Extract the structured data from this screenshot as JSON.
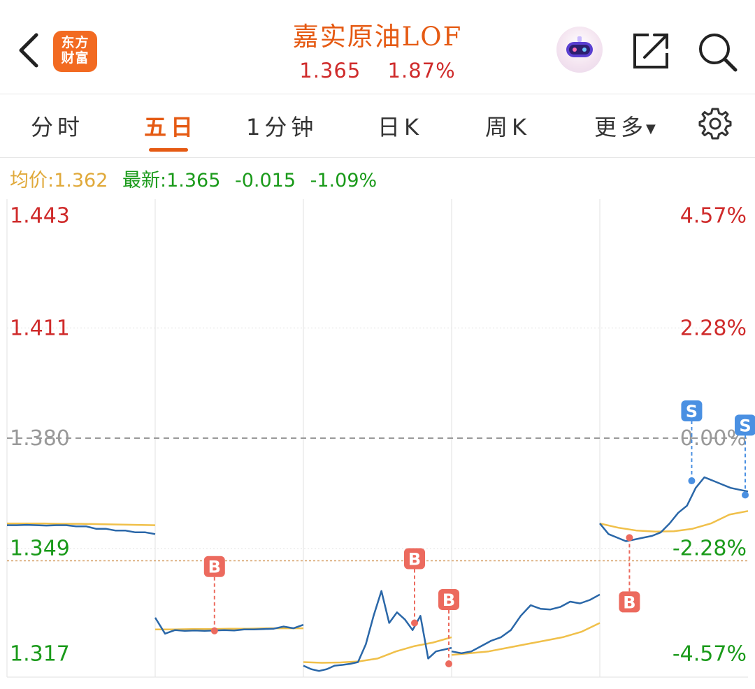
{
  "header": {
    "logo_text_line1": "东方",
    "logo_text_line2": "财富",
    "title": "嘉实原油LOF",
    "price": "1.365",
    "change_pct": "1.87%",
    "icons": [
      "back-arrow-icon",
      "robot-avatar-icon",
      "share-icon",
      "search-icon"
    ]
  },
  "tabs": [
    {
      "label": "分时",
      "active": false
    },
    {
      "label": "五日",
      "active": true
    },
    {
      "label": "1分钟",
      "active": false
    },
    {
      "label": "日K",
      "active": false
    },
    {
      "label": "周K",
      "active": false
    },
    {
      "label": "更多",
      "active": false
    }
  ],
  "stats": {
    "avg_label": "均价:",
    "avg_value": "1.362",
    "latest_label": "最新:",
    "latest_value": "1.365",
    "change": "-0.015",
    "change_pct": "-1.09%"
  },
  "colors": {
    "accent": "#e55a13",
    "up": "#cf2b2b",
    "down": "#1a9a1a",
    "price_line": "#2a67a8",
    "avg_line": "#f0c04a",
    "buy_marker": "#ec6a5e",
    "sell_marker": "#4a90e2"
  },
  "chart_data": {
    "type": "line",
    "ylim": [
      1.3167,
      1.4433
    ],
    "prev_close": 1.38,
    "y_ticks_left": [
      "1.443",
      "1.411",
      "1.380",
      "1.349",
      "1.317"
    ],
    "y_ticks_right": [
      "4.57%",
      "2.28%",
      "0.00%",
      "-2.28%",
      "-4.57%"
    ],
    "y_tick_values": [
      1.443,
      1.411,
      1.38,
      1.349,
      1.317
    ],
    "days": 5,
    "series": [
      {
        "values": [
          [
            1.3555,
            1.3555,
            1.3556,
            1.3555,
            1.3554,
            1.3555,
            1.3555,
            1.3552,
            1.3552,
            1.3545,
            1.3545,
            1.354,
            1.354,
            1.3535,
            1.3535,
            1.353
          ],
          [
            1.3295,
            1.325,
            1.326,
            1.3258,
            1.3259,
            1.3258,
            1.3259,
            1.326,
            1.3259,
            1.3262,
            1.3262,
            1.3263,
            1.3264,
            1.327,
            1.3265,
            1.3275
          ],
          [
            1.316,
            1.315,
            1.3145,
            1.315,
            1.316,
            1.3162,
            1.3165,
            1.317,
            1.322,
            1.33,
            1.337,
            1.328,
            1.331,
            1.329,
            1.326,
            1.33,
            1.318,
            1.32,
            1.3205,
            1.321
          ],
          [
            1.32,
            1.3195,
            1.32,
            1.3215,
            1.323,
            1.324,
            1.326,
            1.33,
            1.333,
            1.332,
            1.3318,
            1.3325,
            1.334,
            1.3335,
            1.3345,
            1.336
          ],
          [
            1.356,
            1.353,
            1.352,
            1.351,
            1.3515,
            1.352,
            1.3525,
            1.3535,
            1.356,
            1.359,
            1.361,
            1.366,
            1.369,
            1.368,
            1.367,
            1.366,
            1.3655,
            1.365
          ]
        ]
      },
      {
        "values": [
          [
            1.356,
            1.356,
            1.356,
            1.3559,
            1.3559,
            1.3558,
            1.3557,
            1.3556,
            1.3555
          ],
          [
            1.3262,
            1.3262,
            1.3263,
            1.3263,
            1.3264,
            1.3264,
            1.3265,
            1.3265,
            1.3265
          ],
          [
            1.317,
            1.3168,
            1.3169,
            1.3172,
            1.318,
            1.32,
            1.3215,
            1.3225,
            1.324
          ],
          [
            1.319,
            1.3195,
            1.32,
            1.321,
            1.322,
            1.323,
            1.324,
            1.3255,
            1.328
          ],
          [
            1.356,
            1.3548,
            1.354,
            1.3537,
            1.3538,
            1.3545,
            1.356,
            1.3585,
            1.3595
          ]
        ]
      }
    ],
    "markers": [
      {
        "label": "B",
        "day": 1,
        "pos": 0.4,
        "price": 1.3258,
        "side": "above"
      },
      {
        "label": "B",
        "day": 2,
        "pos": 0.75,
        "price": 1.328,
        "side": "above"
      },
      {
        "label": "B",
        "day": 2,
        "pos": 1.0,
        "price": 1.3165,
        "side": "above"
      },
      {
        "label": "B",
        "day": 4,
        "pos": 0.2,
        "price": 1.352,
        "side": "below"
      },
      {
        "label": "S",
        "day": 4,
        "pos": 0.62,
        "price": 1.368,
        "side": "above"
      },
      {
        "label": "S",
        "day": 4,
        "pos": 1.0,
        "price": 1.364,
        "side": "above"
      }
    ]
  }
}
